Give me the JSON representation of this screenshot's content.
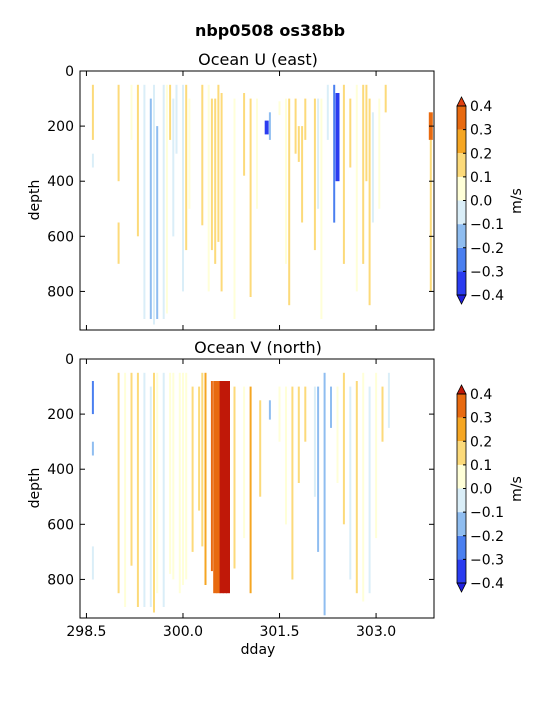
{
  "figure_title": "nbp0508 os38bb",
  "x_label": "dday",
  "colorbar_unit": "m/s",
  "chart_data": [
    {
      "type": "heatmap",
      "title": "Ocean U (east)",
      "ylabel": "depth",
      "xlim": [
        298.4,
        303.9
      ],
      "ylim": [
        940,
        0
      ],
      "xticks": [
        298.5,
        300.0,
        301.5,
        303.0
      ],
      "xtick_labels": [],
      "yticks": [
        0,
        200,
        400,
        600,
        800
      ],
      "ytick_labels": [
        "0",
        "200",
        "400",
        "600",
        "800"
      ],
      "colorbar": {
        "levels": [
          -0.4,
          -0.3,
          -0.2,
          -0.1,
          0.0,
          0.1,
          0.2,
          0.3,
          0.4
        ],
        "tick_labels": [
          "−0.4",
          "−0.3",
          "−0.2",
          "−0.1",
          "0.0",
          "0.1",
          "0.2",
          "0.3",
          "0.4"
        ],
        "colors": [
          "#2a3cf0",
          "#4a7ff0",
          "#8fbdf0",
          "#daeef8",
          "#ffffd8",
          "#fcda7a",
          "#f5a623",
          "#e86a10"
        ],
        "under_color": "#2020e0",
        "over_color": "#e04010",
        "unit": "m/s"
      },
      "streaks": [
        [
          298.6,
          50,
          250,
          0.15
        ],
        [
          298.6,
          300,
          350,
          -0.05
        ],
        [
          299.0,
          50,
          400,
          0.18
        ],
        [
          299.0,
          550,
          700,
          0.18
        ],
        [
          299.2,
          50,
          250,
          0.08
        ],
        [
          299.3,
          50,
          600,
          0.12
        ],
        [
          299.4,
          50,
          900,
          -0.1
        ],
        [
          299.5,
          100,
          900,
          -0.12
        ],
        [
          299.55,
          50,
          920,
          -0.08
        ],
        [
          299.6,
          200,
          900,
          -0.15
        ],
        [
          299.7,
          50,
          900,
          -0.05
        ],
        [
          299.75,
          50,
          880,
          0.08
        ],
        [
          299.8,
          50,
          250,
          0.15
        ],
        [
          299.85,
          100,
          600,
          -0.06
        ],
        [
          299.9,
          50,
          300,
          -0.1
        ],
        [
          300.0,
          50,
          800,
          -0.05
        ],
        [
          300.05,
          50,
          650,
          0.12
        ],
        [
          300.1,
          100,
          500,
          0.06
        ],
        [
          300.3,
          50,
          560,
          0.15
        ],
        [
          300.4,
          50,
          800,
          0.05
        ],
        [
          300.45,
          100,
          650,
          0.12
        ],
        [
          300.5,
          100,
          700,
          0.18
        ],
        [
          300.55,
          50,
          620,
          0.15
        ],
        [
          300.6,
          80,
          800,
          0.1
        ],
        [
          300.8,
          100,
          900,
          0.05
        ],
        [
          300.95,
          80,
          380,
          0.12
        ],
        [
          301.05,
          100,
          820,
          0.18
        ],
        [
          301.15,
          100,
          500,
          0.08
        ],
        [
          301.3,
          180,
          230,
          -0.38
        ],
        [
          301.35,
          150,
          250,
          -0.2
        ],
        [
          301.5,
          110,
          160,
          0.06
        ],
        [
          301.6,
          100,
          700,
          0.08
        ],
        [
          301.65,
          100,
          850,
          0.16
        ],
        [
          301.75,
          100,
          300,
          0.18
        ],
        [
          301.8,
          200,
          330,
          0.18
        ],
        [
          301.85,
          200,
          550,
          0.12
        ],
        [
          301.9,
          100,
          250,
          0.15
        ],
        [
          302.05,
          100,
          650,
          0.12
        ],
        [
          302.1,
          100,
          500,
          -0.05
        ],
        [
          302.15,
          100,
          900,
          0.06
        ],
        [
          302.25,
          50,
          250,
          -0.1
        ],
        [
          302.35,
          50,
          550,
          -0.3
        ],
        [
          302.4,
          80,
          400,
          -0.35
        ],
        [
          302.5,
          50,
          700,
          0.12
        ],
        [
          302.6,
          100,
          350,
          0.15
        ],
        [
          302.7,
          50,
          800,
          0.08
        ],
        [
          302.8,
          50,
          700,
          0.18
        ],
        [
          302.85,
          50,
          400,
          0.12
        ],
        [
          302.9,
          100,
          850,
          0.1
        ],
        [
          302.95,
          150,
          550,
          -0.05
        ],
        [
          303.05,
          100,
          500,
          0.08
        ],
        [
          303.15,
          50,
          150,
          0.15
        ],
        [
          303.85,
          150,
          250,
          0.35
        ],
        [
          303.85,
          250,
          800,
          0.18
        ]
      ]
    },
    {
      "type": "heatmap",
      "title": "Ocean V (north)",
      "ylabel": "depth",
      "xlim": [
        298.4,
        303.9
      ],
      "ylim": [
        940,
        0
      ],
      "xticks": [
        298.5,
        300.0,
        301.5,
        303.0
      ],
      "xtick_labels": [
        "298.5",
        "300.0",
        "301.5",
        "303.0"
      ],
      "yticks": [
        0,
        200,
        400,
        600,
        800
      ],
      "ytick_labels": [
        "0",
        "200",
        "400",
        "600",
        "800"
      ],
      "colorbar": {
        "levels": [
          -0.4,
          -0.3,
          -0.2,
          -0.1,
          0.0,
          0.1,
          0.2,
          0.3,
          0.4
        ],
        "tick_labels": [
          "−0.4",
          "−0.3",
          "−0.2",
          "−0.1",
          "0.0",
          "0.1",
          "0.2",
          "0.3",
          "0.4"
        ],
        "colors": [
          "#2a3cf0",
          "#4a7ff0",
          "#8fbdf0",
          "#daeef8",
          "#ffffd8",
          "#fcda7a",
          "#f5a623",
          "#e86a10"
        ],
        "under_color": "#2020e0",
        "over_color": "#c01808",
        "unit": "m/s"
      },
      "streaks": [
        [
          298.6,
          80,
          200,
          -0.25
        ],
        [
          298.6,
          300,
          350,
          -0.15
        ],
        [
          298.6,
          680,
          800,
          -0.05
        ],
        [
          299.0,
          50,
          850,
          0.12
        ],
        [
          299.1,
          50,
          900,
          0.08
        ],
        [
          299.2,
          50,
          750,
          0.1
        ],
        [
          299.3,
          50,
          900,
          0.12
        ],
        [
          299.4,
          50,
          900,
          -0.1
        ],
        [
          299.5,
          100,
          900,
          -0.08
        ],
        [
          299.55,
          50,
          920,
          0.15
        ],
        [
          299.6,
          50,
          850,
          0.05
        ],
        [
          299.7,
          50,
          900,
          -0.06
        ],
        [
          299.8,
          50,
          780,
          0.06
        ],
        [
          299.85,
          50,
          800,
          0.08
        ],
        [
          299.95,
          50,
          850,
          0.05
        ],
        [
          300.0,
          50,
          820,
          0.08
        ],
        [
          300.05,
          50,
          800,
          0.05
        ],
        [
          300.15,
          100,
          700,
          0.12
        ],
        [
          300.25,
          100,
          550,
          0.15
        ],
        [
          300.3,
          50,
          680,
          0.18
        ],
        [
          300.35,
          50,
          820,
          0.25
        ],
        [
          300.45,
          80,
          770,
          0.3
        ],
        [
          300.5,
          80,
          850,
          0.32
        ],
        [
          300.55,
          80,
          850,
          0.38
        ],
        [
          300.6,
          80,
          850,
          0.45
        ],
        [
          300.65,
          80,
          850,
          0.45
        ],
        [
          300.7,
          80,
          850,
          0.45
        ],
        [
          300.8,
          100,
          760,
          0.12
        ],
        [
          300.95,
          100,
          650,
          0.08
        ],
        [
          301.05,
          100,
          850,
          0.25
        ],
        [
          301.2,
          150,
          500,
          0.15
        ],
        [
          301.35,
          150,
          220,
          -0.15
        ],
        [
          301.5,
          100,
          300,
          0.05
        ],
        [
          301.6,
          100,
          600,
          0.08
        ],
        [
          301.7,
          100,
          800,
          0.12
        ],
        [
          301.8,
          100,
          450,
          0.1
        ],
        [
          301.9,
          100,
          300,
          0.15
        ],
        [
          302.05,
          100,
          500,
          -0.1
        ],
        [
          302.1,
          100,
          700,
          -0.15
        ],
        [
          302.2,
          50,
          930,
          -0.12
        ],
        [
          302.3,
          100,
          250,
          -0.18
        ],
        [
          302.4,
          100,
          450,
          0.06
        ],
        [
          302.5,
          50,
          600,
          0.1
        ],
        [
          302.6,
          100,
          800,
          -0.05
        ],
        [
          302.7,
          80,
          850,
          0.1
        ],
        [
          302.8,
          50,
          880,
          0.08
        ],
        [
          302.9,
          100,
          850,
          -0.06
        ],
        [
          303.0,
          50,
          650,
          0.06
        ],
        [
          303.1,
          100,
          300,
          0.12
        ],
        [
          303.2,
          50,
          250,
          -0.1
        ]
      ]
    }
  ]
}
